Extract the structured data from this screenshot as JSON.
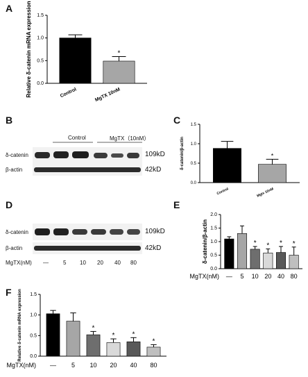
{
  "panels": {
    "A": {
      "letter": "A",
      "chart_data": {
        "type": "bar",
        "ylabel": "Relative δ-catenin mRNA expression",
        "categories": [
          "Control",
          "MgTX 10nM"
        ],
        "values": [
          1.0,
          0.49
        ],
        "errors": [
          0.07,
          0.1
        ],
        "colors": [
          "#000000",
          "#a6a6a6"
        ],
        "sig": [
          "",
          "*"
        ],
        "ylim": [
          0,
          1.5
        ],
        "yticks": [
          "0.0",
          "0.5",
          "1.0",
          "1.5"
        ]
      }
    },
    "B": {
      "letter": "B",
      "group_labels": [
        "Control",
        "MgTX（10nM）"
      ],
      "rows": [
        {
          "label": "δ-catenin",
          "kd": "109kD"
        },
        {
          "label": "β-actin",
          "kd": "42kD"
        }
      ]
    },
    "C": {
      "letter": "C",
      "chart_data": {
        "type": "bar",
        "ylabel": "δ-catenin/β-actin",
        "categories": [
          "Control",
          "Mgtx 10nM"
        ],
        "values": [
          0.88,
          0.47
        ],
        "errors": [
          0.18,
          0.13
        ],
        "colors": [
          "#000000",
          "#a6a6a6"
        ],
        "sig": [
          "",
          "*"
        ],
        "ylim": [
          0,
          1.5
        ],
        "yticks": [
          "0.0",
          "0.5",
          "1.0",
          "1.5"
        ]
      }
    },
    "D": {
      "letter": "D",
      "rows": [
        {
          "label": "δ-catenin",
          "kd": "109kD"
        },
        {
          "label": "β-actin",
          "kd": "42kD"
        }
      ],
      "xtitle": "MgTX(nM)",
      "lanes": [
        "—",
        "5",
        "10",
        "20",
        "40",
        "80"
      ]
    },
    "E": {
      "letter": "E",
      "chart_data": {
        "type": "bar",
        "ylabel": "δ-catenin/β-actin",
        "xtitle": "MgTX(nM)",
        "categories": [
          "—",
          "5",
          "10",
          "20",
          "40",
          "80"
        ],
        "values": [
          1.1,
          1.3,
          0.72,
          0.58,
          0.6,
          0.5
        ],
        "errors": [
          0.08,
          0.28,
          0.1,
          0.15,
          0.22,
          0.3
        ],
        "colors": [
          "#000000",
          "#a6a6a6",
          "#6e6e6e",
          "#d9d9d9",
          "#595959",
          "#bfbfbf"
        ],
        "sig": [
          "",
          "",
          "*",
          "*",
          "*",
          "*"
        ],
        "ylim": [
          0,
          2.0
        ],
        "yticks": [
          "0.0",
          "0.5",
          "1.0",
          "1.5",
          "2.0"
        ]
      }
    },
    "F": {
      "letter": "F",
      "chart_data": {
        "type": "bar",
        "ylabel": "Relative δ-catenin mRNA expression",
        "xtitle": "MgTX(nM)",
        "categories": [
          "—",
          "5",
          "10",
          "20",
          "40",
          "80"
        ],
        "values": [
          1.03,
          0.85,
          0.52,
          0.33,
          0.35,
          0.22
        ],
        "errors": [
          0.08,
          0.2,
          0.08,
          0.09,
          0.1,
          0.06
        ],
        "colors": [
          "#000000",
          "#a6a6a6",
          "#6e6e6e",
          "#d9d9d9",
          "#595959",
          "#bfbfbf"
        ],
        "sig": [
          "",
          "",
          "*",
          "*",
          "*",
          "*"
        ],
        "ylim": [
          0,
          1.5
        ],
        "yticks": [
          "0.0",
          "0.5",
          "1.0",
          "1.5"
        ]
      }
    }
  }
}
